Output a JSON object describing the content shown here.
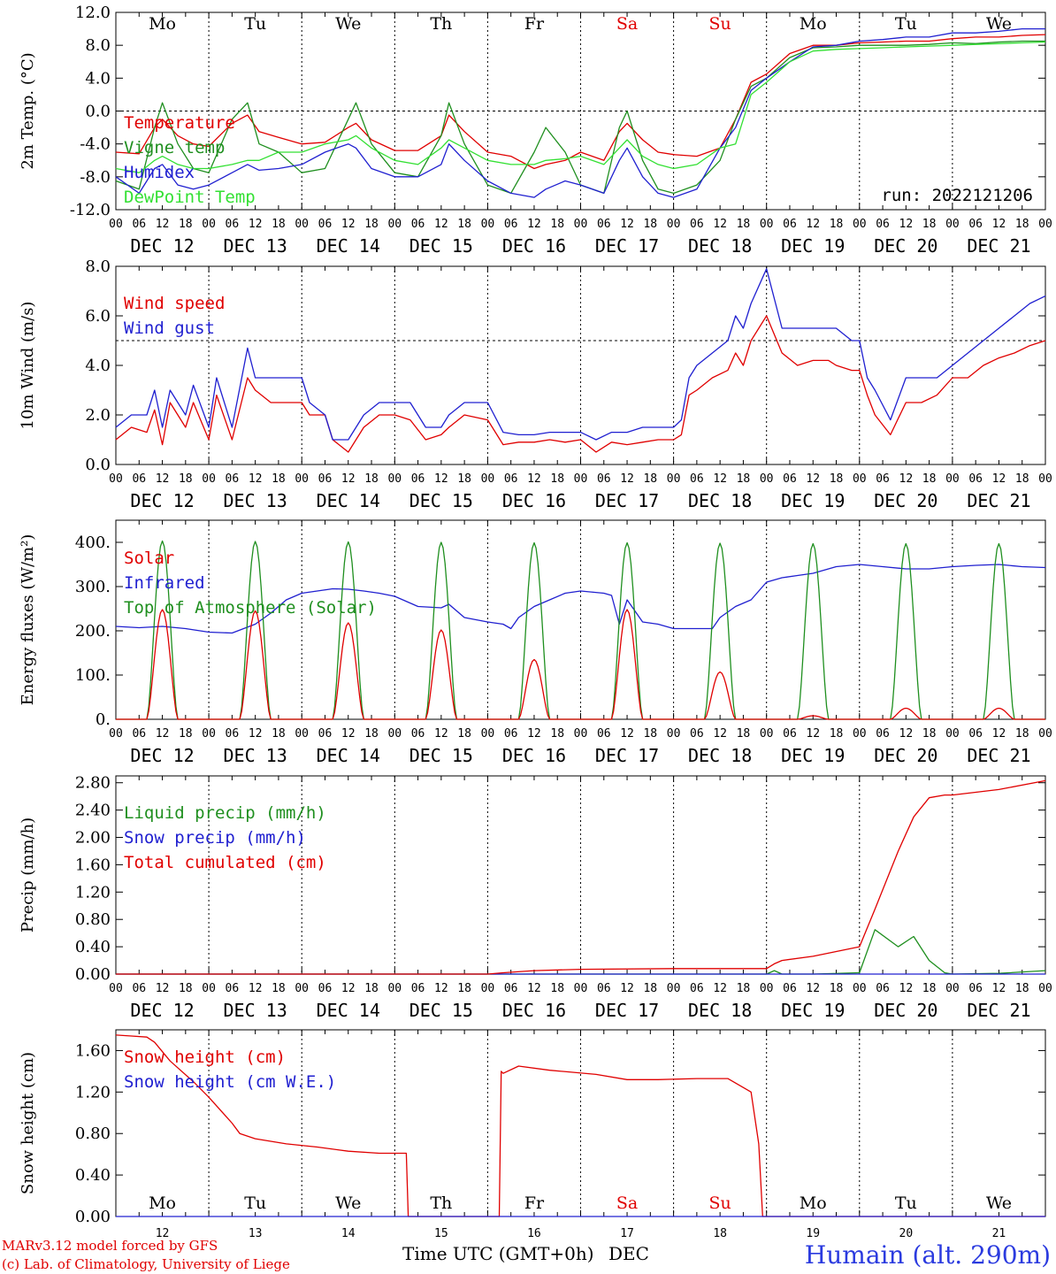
{
  "chart_data": [
    {
      "type": "line",
      "id": "temperature",
      "ylabel": "2m Temp. (°C)",
      "ylim": [
        -12,
        12
      ],
      "yticks": [
        "-12.0",
        "-8.0",
        "-4.0",
        "0.0",
        "4.0",
        "8.0",
        "12.0"
      ],
      "dashed_reference": 0,
      "x_hours": [
        0,
        6,
        10,
        12,
        16,
        20,
        24,
        30,
        34,
        37,
        42,
        48,
        54,
        60,
        62,
        66,
        72,
        78,
        84,
        86,
        90,
        96,
        102,
        108,
        111,
        116,
        120,
        126,
        130,
        132,
        136,
        140,
        144,
        150,
        156,
        160,
        164,
        168,
        174,
        180,
        186,
        192,
        198,
        204,
        210,
        216,
        222,
        228,
        234,
        240
      ],
      "series": [
        {
          "name": "Temperature",
          "color": "#e00000",
          "values": [
            -5.0,
            -5.2,
            -2.0,
            -1.0,
            -3.0,
            -4.0,
            -4.3,
            -1.5,
            -0.5,
            -2.5,
            -3.2,
            -4.0,
            -3.8,
            -2.0,
            -1.5,
            -3.5,
            -4.8,
            -4.8,
            -3.0,
            -0.5,
            -2.5,
            -5.0,
            -5.5,
            -7.0,
            -6.5,
            -6.0,
            -5.0,
            -6.0,
            -2.5,
            -1.5,
            -3.5,
            -5.0,
            -5.3,
            -5.5,
            -4.5,
            -1.0,
            3.5,
            4.5,
            7.0,
            8.0,
            8.0,
            8.3,
            8.4,
            8.5,
            8.5,
            8.8,
            9.0,
            9.0,
            9.2,
            9.3
          ]
        },
        {
          "name": "Vigne temp",
          "color": "#1f8f1f",
          "values": [
            -8.5,
            -9.5,
            -2.0,
            1.0,
            -4.0,
            -7.0,
            -7.5,
            -1.0,
            1.0,
            -4.0,
            -5.0,
            -7.5,
            -7.0,
            -1.0,
            1.0,
            -4.0,
            -7.5,
            -8.0,
            -3.0,
            1.0,
            -4.0,
            -9.0,
            -10.0,
            -5.0,
            -2.0,
            -5.0,
            -9.0,
            -10.0,
            -2.0,
            0.0,
            -6.0,
            -9.5,
            -10.0,
            -9.0,
            -6.0,
            -1.0,
            3.0,
            4.0,
            6.5,
            7.7,
            7.8,
            8.0,
            8.0,
            8.0,
            8.1,
            8.3,
            8.2,
            8.4,
            8.5,
            8.5
          ]
        },
        {
          "name": "Humidex",
          "color": "#2020d0",
          "values": [
            -8.0,
            -10.0,
            -7.0,
            -6.5,
            -9.0,
            -9.5,
            -9.0,
            -7.5,
            -6.5,
            -7.2,
            -7.0,
            -6.5,
            -5.0,
            -4.0,
            -4.5,
            -7.0,
            -8.0,
            -8.0,
            -6.5,
            -4.0,
            -6.0,
            -8.5,
            -10.0,
            -10.5,
            -9.5,
            -8.5,
            -9.0,
            -10.0,
            -6.0,
            -4.5,
            -8.0,
            -10.0,
            -10.5,
            -9.5,
            -4.5,
            -2.0,
            2.5,
            4.0,
            6.0,
            7.8,
            8.0,
            8.5,
            8.7,
            9.0,
            9.0,
            9.5,
            9.5,
            9.7,
            10.0,
            10.0
          ]
        },
        {
          "name": "DewPoint Temp",
          "color": "#33e033",
          "values": [
            -7.0,
            -7.5,
            -6.0,
            -5.5,
            -6.5,
            -7.0,
            -7.0,
            -6.5,
            -6.0,
            -6.0,
            -5.0,
            -5.0,
            -4.0,
            -3.5,
            -3.0,
            -4.5,
            -6.0,
            -6.5,
            -4.5,
            -3.5,
            -4.5,
            -6.0,
            -6.5,
            -6.5,
            -6.0,
            -5.8,
            -5.5,
            -6.5,
            -4.5,
            -3.5,
            -5.5,
            -6.5,
            -7.0,
            -6.5,
            -4.5,
            -4.0,
            2.0,
            3.5,
            6.0,
            7.3,
            7.5,
            7.6,
            7.7,
            7.8,
            7.9,
            8.0,
            8.1,
            8.2,
            8.3,
            8.4
          ]
        }
      ],
      "annotation": "run: 2022121206",
      "day_labels_top": true
    },
    {
      "type": "line",
      "id": "wind",
      "ylabel": "10m Wind (m/s)",
      "ylim": [
        0,
        8
      ],
      "yticks": [
        "0.0",
        "2.0",
        "4.0",
        "6.0",
        "8.0"
      ],
      "dashed_reference": 5,
      "x_hours": [
        0,
        4,
        8,
        10,
        12,
        14,
        18,
        20,
        24,
        26,
        30,
        34,
        36,
        40,
        44,
        48,
        50,
        54,
        56,
        60,
        64,
        68,
        72,
        76,
        80,
        84,
        86,
        90,
        96,
        100,
        104,
        108,
        112,
        116,
        120,
        124,
        128,
        132,
        136,
        140,
        144,
        146,
        148,
        150,
        154,
        158,
        160,
        162,
        164,
        168,
        172,
        176,
        180,
        184,
        186,
        190,
        192,
        194,
        196,
        200,
        204,
        208,
        212,
        216,
        220,
        224,
        228,
        232,
        236,
        240
      ],
      "series": [
        {
          "name": "Wind speed",
          "color": "#e00000",
          "values": [
            1.0,
            1.5,
            1.3,
            2.2,
            0.8,
            2.5,
            1.5,
            2.5,
            1.0,
            2.8,
            1.0,
            3.5,
            3.0,
            2.5,
            2.5,
            2.5,
            2.0,
            2.0,
            1.0,
            0.5,
            1.5,
            2.0,
            2.0,
            1.8,
            1.0,
            1.2,
            1.5,
            2.0,
            1.8,
            0.8,
            0.9,
            0.9,
            1.0,
            0.9,
            1.0,
            0.5,
            0.9,
            0.8,
            0.9,
            1.0,
            1.0,
            1.2,
            2.8,
            3.0,
            3.5,
            3.8,
            4.5,
            4.0,
            5.0,
            6.0,
            4.5,
            4.0,
            4.2,
            4.2,
            4.0,
            3.8,
            3.8,
            2.8,
            2.0,
            1.2,
            2.5,
            2.5,
            2.8,
            3.5,
            3.5,
            4.0,
            4.3,
            4.5,
            4.8,
            5.0
          ]
        },
        {
          "name": "Wind gust",
          "color": "#2020d0",
          "values": [
            1.5,
            2.0,
            2.0,
            3.0,
            1.5,
            3.0,
            2.0,
            3.2,
            1.5,
            3.5,
            1.5,
            4.7,
            3.5,
            3.5,
            3.5,
            3.5,
            2.5,
            2.0,
            1.0,
            1.0,
            2.0,
            2.5,
            2.5,
            2.5,
            1.5,
            1.5,
            2.0,
            2.5,
            2.5,
            1.3,
            1.2,
            1.2,
            1.3,
            1.3,
            1.3,
            1.0,
            1.3,
            1.3,
            1.5,
            1.5,
            1.5,
            1.8,
            3.5,
            4.0,
            4.5,
            5.0,
            6.0,
            5.5,
            6.5,
            7.9,
            5.5,
            5.5,
            5.5,
            5.5,
            5.5,
            5.0,
            5.0,
            3.5,
            3.0,
            1.8,
            3.5,
            3.5,
            3.5,
            4.0,
            4.5,
            5.0,
            5.5,
            6.0,
            6.5,
            6.8
          ]
        }
      ],
      "annotation": "",
      "day_labels_top": false
    },
    {
      "type": "line",
      "id": "energy",
      "ylabel": "Energy fluxes (W/m²)",
      "ylim": [
        0,
        450
      ],
      "yticks": [
        "0.",
        "100.",
        "200.",
        "300.",
        "400."
      ],
      "dashed_reference": null,
      "infrared": {
        "name": "Infrared",
        "color": "#2020d0",
        "x_hours": [
          0,
          6,
          12,
          18,
          24,
          30,
          36,
          40,
          44,
          48,
          52,
          56,
          60,
          64,
          68,
          72,
          78,
          84,
          86,
          90,
          96,
          100,
          102,
          104,
          108,
          112,
          116,
          120,
          126,
          128,
          130,
          132,
          136,
          140,
          144,
          150,
          154,
          156,
          160,
          164,
          168,
          172,
          176,
          180,
          186,
          192,
          198,
          204,
          210,
          216,
          222,
          228,
          234,
          240
        ],
        "values": [
          210,
          207,
          210,
          205,
          197,
          195,
          215,
          240,
          270,
          285,
          290,
          295,
          294,
          290,
          285,
          278,
          255,
          252,
          260,
          230,
          220,
          215,
          205,
          230,
          255,
          270,
          285,
          290,
          285,
          280,
          215,
          270,
          220,
          215,
          205,
          205,
          205,
          230,
          255,
          270,
          310,
          320,
          325,
          330,
          345,
          350,
          345,
          340,
          340,
          345,
          348,
          350,
          345,
          343
        ]
      },
      "solar": {
        "name": "Solar",
        "color": "#e00000",
        "sunrise_hour": 8,
        "sunset_hour": 16,
        "peaks": [
          248,
          245,
          218,
          202,
          135,
          248,
          107,
          8,
          25,
          25
        ]
      },
      "toa": {
        "name": "Top of Atmosphere (Solar)",
        "color": "#1f8f1f",
        "sunrise_hour": 8,
        "sunset_hour": 16,
        "peaks": [
          403,
          402,
          401,
          400,
          399,
          399,
          398,
          397,
          397,
          397
        ]
      },
      "annotation": "",
      "day_labels_top": false
    },
    {
      "type": "line",
      "id": "precip",
      "ylabel": "Precip (mm/h)",
      "ylim": [
        0,
        2.9
      ],
      "yticks": [
        "0.00",
        "0.40",
        "0.80",
        "1.20",
        "1.60",
        "2.00",
        "2.40",
        "2.80"
      ],
      "dashed_reference": null,
      "x_hours": [
        0,
        48,
        96,
        100,
        108,
        120,
        144,
        168,
        170,
        172,
        180,
        192,
        196,
        202,
        206,
        210,
        214,
        216,
        228,
        240
      ],
      "series": [
        {
          "name": "Liquid precip (mm/h)",
          "color": "#1f8f1f",
          "values": [
            0,
            0,
            0,
            0,
            0,
            0,
            0,
            0,
            0.05,
            0,
            0,
            0.02,
            0.65,
            0.4,
            0.55,
            0.2,
            0.02,
            0,
            0.01,
            0.05
          ]
        },
        {
          "name": "Snow precip (mm/h)",
          "color": "#2020d0",
          "values": [
            0,
            0,
            0,
            0,
            0,
            0,
            0,
            0,
            0,
            0,
            0,
            0,
            0,
            0,
            0,
            0,
            0,
            0,
            0,
            0
          ]
        },
        {
          "name": "Total cumulated (cm)",
          "color": "#e00000",
          "values": [
            0,
            0,
            0,
            0.02,
            0.05,
            0.07,
            0.08,
            0.08,
            0.15,
            0.2,
            0.26,
            0.4,
            0.95,
            1.8,
            2.3,
            2.58,
            2.62,
            2.62,
            2.7,
            2.83
          ]
        }
      ],
      "annotation": "",
      "day_labels_top": false
    },
    {
      "type": "line",
      "id": "snow",
      "ylabel": "Snow height (cm)",
      "ylim": [
        0,
        1.8
      ],
      "yticks": [
        "0.00",
        "0.40",
        "0.80",
        "1.20",
        "1.60"
      ],
      "dashed_reference": null,
      "x_hours": [
        0,
        4,
        8,
        10,
        14,
        20,
        24,
        30,
        32,
        36,
        44,
        52,
        60,
        68,
        75,
        75.5,
        84,
        99,
        99.5,
        100,
        104,
        112,
        124,
        132,
        140,
        150,
        158,
        164,
        166,
        167,
        240
      ],
      "series": [
        {
          "name": "Snow height (cm)",
          "color": "#e00000",
          "values": [
            1.75,
            1.74,
            1.73,
            1.68,
            1.5,
            1.3,
            1.15,
            0.9,
            0.8,
            0.75,
            0.7,
            0.67,
            0.63,
            0.61,
            0.61,
            0,
            0,
            0,
            1.4,
            1.38,
            1.45,
            1.41,
            1.37,
            1.32,
            1.32,
            1.33,
            1.33,
            1.2,
            0.7,
            0,
            0
          ]
        },
        {
          "name": "Snow height (cm W.E.)",
          "color": "#2020d0",
          "values": [
            0,
            0,
            0,
            0,
            0,
            0,
            0,
            0,
            0,
            0,
            0,
            0,
            0,
            0,
            0,
            0,
            0,
            0,
            0,
            0,
            0,
            0,
            0,
            0,
            0,
            0,
            0,
            0,
            0,
            0,
            0
          ]
        }
      ],
      "annotation": "",
      "day_labels_bottom": true
    }
  ],
  "days": [
    {
      "abbr": "Mo",
      "date": "DEC 12",
      "num": "12",
      "weekend": false
    },
    {
      "abbr": "Tu",
      "date": "DEC 13",
      "num": "13",
      "weekend": false
    },
    {
      "abbr": "We",
      "date": "DEC 14",
      "num": "14",
      "weekend": false
    },
    {
      "abbr": "Th",
      "date": "DEC 15",
      "num": "15",
      "weekend": false
    },
    {
      "abbr": "Fr",
      "date": "DEC 16",
      "num": "16",
      "weekend": false
    },
    {
      "abbr": "Sa",
      "date": "DEC 17",
      "num": "17",
      "weekend": true
    },
    {
      "abbr": "Su",
      "date": "DEC 18",
      "num": "18",
      "weekend": true
    },
    {
      "abbr": "Mo",
      "date": "DEC 19",
      "num": "19",
      "weekend": false
    },
    {
      "abbr": "Tu",
      "date": "DEC 20",
      "num": "20",
      "weekend": false
    },
    {
      "abbr": "We",
      "date": "DEC 21",
      "num": "21",
      "weekend": false
    }
  ],
  "hour_labels": [
    "00",
    "06",
    "12",
    "18"
  ],
  "final_hour_label": "00",
  "colors": {
    "weekday": "#000000",
    "weekend": "#e00000"
  },
  "footer": {
    "model": "MARv3.12 model forced by GFS",
    "credit": "(c) Lab. of Climatology, University of Liege",
    "xlabel": "Time UTC (GMT+0h)",
    "month": "DEC",
    "station": "Humain (alt. 290m)"
  }
}
